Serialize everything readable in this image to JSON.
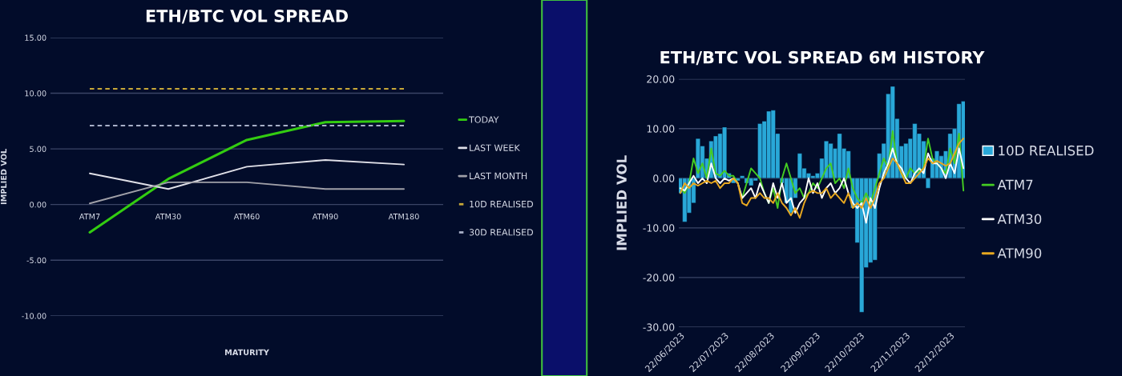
{
  "chart_data": [
    {
      "type": "line",
      "title": "ETH/BTC VOL SPREAD",
      "xlabel": "MATURITY",
      "ylabel": "IMPLIED VOL",
      "categories": [
        "ATM7",
        "ATM30",
        "ATM60",
        "ATM90",
        "ATM180"
      ],
      "series": [
        {
          "name": "TODAY",
          "color": "#33cc11",
          "values": [
            -2.5,
            2.3,
            5.8,
            7.4,
            7.5
          ]
        },
        {
          "name": "LAST WEEK",
          "color": "#e0e0e8",
          "values": [
            2.8,
            1.4,
            3.4,
            4.0,
            3.6
          ]
        },
        {
          "name": "LAST MONTH",
          "color": "#a0a0a8",
          "values": [
            0.1,
            2.0,
            2.0,
            1.4,
            1.4
          ]
        },
        {
          "name": "10D REALISED",
          "color": "#c8a838",
          "line_style": "dashed",
          "values": [
            10.4,
            10.4,
            10.4,
            10.4,
            10.4
          ]
        },
        {
          "name": "30D REALISED",
          "color": "#a8b0c8",
          "line_style": "dashed",
          "values": [
            7.1,
            7.1,
            7.1,
            7.1,
            7.1
          ]
        }
      ],
      "ylim": [
        -10,
        15
      ],
      "yticks": [
        {
          "value": -10,
          "label": "-10.00"
        },
        {
          "value": -5,
          "label": "-5.00"
        },
        {
          "value": 0,
          "label": "0.00"
        },
        {
          "value": 5,
          "label": "5.00"
        },
        {
          "value": 10,
          "label": "10.00"
        },
        {
          "value": 15,
          "label": "15.00"
        }
      ],
      "grid": "y",
      "legend": "right",
      "marker": "none",
      "line_style": "solid"
    },
    {
      "type": "line",
      "title": "ETH/BTC VOL SPREAD 6M HISTORY",
      "ylabel": "IMPLIED VOL",
      "x": [
        "2023-06-22",
        "2023-06-25",
        "2023-06-28",
        "2023-07-01",
        "2023-07-04",
        "2023-07-07",
        "2023-07-10",
        "2023-07-13",
        "2023-07-16",
        "2023-07-19",
        "2023-07-22",
        "2023-07-25",
        "2023-07-28",
        "2023-07-31",
        "2023-08-03",
        "2023-08-06",
        "2023-08-09",
        "2023-08-12",
        "2023-08-15",
        "2023-08-18",
        "2023-08-21",
        "2023-08-24",
        "2023-08-27",
        "2023-08-30",
        "2023-09-02",
        "2023-09-05",
        "2023-09-08",
        "2023-09-11",
        "2023-09-14",
        "2023-09-17",
        "2023-09-20",
        "2023-09-23",
        "2023-09-26",
        "2023-09-29",
        "2023-10-02",
        "2023-10-05",
        "2023-10-08",
        "2023-10-11",
        "2023-10-14",
        "2023-10-17",
        "2023-10-20",
        "2023-10-23",
        "2023-10-26",
        "2023-10-29",
        "2023-11-01",
        "2023-11-04",
        "2023-11-07",
        "2023-11-10",
        "2023-11-13",
        "2023-11-16",
        "2023-11-19",
        "2023-11-22",
        "2023-11-25",
        "2023-11-28",
        "2023-12-01",
        "2023-12-04",
        "2023-12-07",
        "2023-12-10",
        "2023-12-13",
        "2023-12-16",
        "2023-12-19",
        "2023-12-22",
        "2023-12-25",
        "2023-12-28",
        "2023-12-31"
      ],
      "series": [
        {
          "name": "10D REALISED",
          "type": "bar",
          "color": "#29a8d8",
          "values": [
            -3,
            -8.8,
            -7,
            -5,
            8,
            6.5,
            4,
            7.5,
            8.5,
            9,
            10.3,
            1,
            -1,
            -0.5,
            0.5,
            -1,
            -1.5,
            -0.5,
            11,
            11.5,
            13.5,
            13.7,
            9,
            -1,
            -5,
            -7,
            -4,
            5,
            2,
            1,
            0.5,
            1,
            4,
            7.5,
            7,
            6,
            9,
            6,
            5.5,
            -6,
            -13,
            -27,
            -18,
            -17,
            -16.5,
            5,
            7,
            17,
            18.5,
            12,
            6.5,
            7,
            8,
            11,
            9,
            7.5,
            -2,
            4,
            5.5,
            4.5,
            5.5,
            9,
            10,
            15,
            15.5
          ]
        },
        {
          "name": "ATM7",
          "color": "#44cc22",
          "values": [
            -2,
            -3,
            -1,
            4,
            1,
            3,
            0,
            6,
            1,
            0.5,
            1.5,
            0.5,
            0.5,
            -1,
            -4,
            -1,
            2,
            1,
            0,
            -3,
            -5,
            -2,
            -6,
            0,
            3,
            0,
            -3,
            -2,
            -4,
            -3,
            -1,
            -2,
            0,
            2,
            3,
            -1,
            0,
            -2,
            2,
            -2,
            -4,
            -5,
            -3,
            -5,
            -2,
            1,
            4,
            2,
            9.5,
            3,
            1,
            0,
            2,
            1,
            1.5,
            2,
            8,
            4,
            3,
            2,
            1,
            6,
            3,
            9,
            -2.5
          ]
        },
        {
          "name": "ATM30",
          "color": "#ffffff",
          "values": [
            -2,
            -2.5,
            -1,
            0.5,
            -1,
            0,
            -1,
            3,
            0,
            -1,
            0,
            -0.5,
            0,
            -1,
            -4,
            -3,
            -2,
            -4,
            -1,
            -3,
            -5,
            -1,
            -4,
            -1,
            -5,
            -4,
            -7,
            -5,
            -4,
            0,
            -3,
            -1,
            -4,
            -2,
            -1,
            -3,
            -2,
            0,
            -3,
            -5,
            -6,
            -5,
            -9,
            -4,
            -6,
            -2,
            1,
            3,
            6,
            3,
            2,
            0,
            -1,
            1,
            2,
            1,
            5,
            3,
            3,
            2,
            0,
            3,
            1,
            6,
            2
          ]
        },
        {
          "name": "ATM90",
          "color": "#e8a820",
          "values": [
            -3,
            -1,
            -2,
            -1,
            -1.5,
            -1,
            -0.5,
            -1,
            -0.5,
            -2,
            -1,
            -1,
            0,
            -1,
            -5,
            -5.5,
            -4,
            -4,
            -3,
            -4,
            -4,
            -5,
            -3,
            -5,
            -6,
            -7.5,
            -6,
            -8,
            -5,
            -3,
            -2.5,
            -3,
            -3,
            -2,
            -4,
            -3,
            -4,
            -5,
            -3,
            -6,
            -5,
            -6,
            -4,
            -6,
            -4,
            -1,
            0,
            2,
            4,
            3,
            1,
            -1,
            -1,
            0,
            1,
            2,
            4,
            3,
            3.5,
            3,
            2.5,
            3,
            5,
            7,
            8
          ]
        }
      ],
      "xlim": [
        "2023-06-21",
        "2024-01-01"
      ],
      "xticks": [
        {
          "value": "2023-06-22",
          "label": "22/06/2023"
        },
        {
          "value": "2023-07-22",
          "label": "22/07/2023"
        },
        {
          "value": "2023-08-22",
          "label": "22/08/2023"
        },
        {
          "value": "2023-09-22",
          "label": "22/09/2023"
        },
        {
          "value": "2023-10-22",
          "label": "22/10/2023"
        },
        {
          "value": "2023-11-22",
          "label": "22/11/2023"
        },
        {
          "value": "2023-12-22",
          "label": "22/12/2023"
        }
      ],
      "ylim": [
        -30,
        20
      ],
      "yticks": [
        {
          "value": -30,
          "label": "-30.00"
        },
        {
          "value": -20,
          "label": "-20.00"
        },
        {
          "value": -10,
          "label": "-10.00"
        },
        {
          "value": 0,
          "label": "0.00"
        },
        {
          "value": 10,
          "label": "10.00"
        },
        {
          "value": 20,
          "label": "20.00"
        }
      ],
      "grid": "y",
      "legend": "right",
      "marker": "none",
      "line_style": "solid"
    }
  ]
}
